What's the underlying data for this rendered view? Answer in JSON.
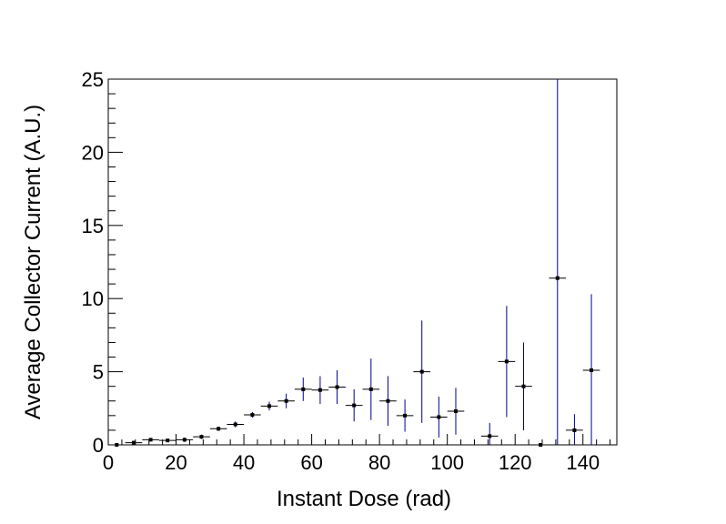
{
  "chart_data": {
    "type": "scatter",
    "title": "",
    "xlabel": "Instant Dose (rad)",
    "ylabel": "Average Collector Current (A.U.)",
    "xlim": [
      0,
      150
    ],
    "ylim": [
      0,
      25
    ],
    "x_ticks": [
      0,
      20,
      40,
      60,
      80,
      100,
      120,
      140
    ],
    "y_ticks": [
      0,
      5,
      10,
      15,
      20,
      25
    ],
    "x_tick_labels": [
      "0",
      "20",
      "40",
      "60",
      "80",
      "100",
      "120",
      "140"
    ],
    "y_tick_labels": [
      "0",
      "5",
      "10",
      "15",
      "20",
      "25"
    ],
    "grid": false,
    "bin_half_width": 2.5,
    "marker_color": "#000000",
    "errorbar_color": "#00008b",
    "points": [
      {
        "x": 2.5,
        "y": 0.0,
        "err": 0.05
      },
      {
        "x": 7.5,
        "y": 0.15,
        "err": 0.1
      },
      {
        "x": 12.5,
        "y": 0.35,
        "err": 0.1
      },
      {
        "x": 17.5,
        "y": 0.3,
        "err": 0.1
      },
      {
        "x": 22.5,
        "y": 0.35,
        "err": 0.15
      },
      {
        "x": 27.5,
        "y": 0.55,
        "err": 0.15
      },
      {
        "x": 32.5,
        "y": 1.1,
        "err": 0.15
      },
      {
        "x": 37.5,
        "y": 1.4,
        "err": 0.2
      },
      {
        "x": 42.5,
        "y": 2.05,
        "err": 0.2
      },
      {
        "x": 47.5,
        "y": 2.65,
        "err": 0.3
      },
      {
        "x": 52.5,
        "y": 3.0,
        "err": 0.5
      },
      {
        "x": 57.5,
        "y": 3.8,
        "err": 0.8
      },
      {
        "x": 62.5,
        "y": 3.75,
        "err": 0.95
      },
      {
        "x": 67.5,
        "y": 3.95,
        "err": 1.15
      },
      {
        "x": 72.5,
        "y": 2.7,
        "err": 1.1
      },
      {
        "x": 77.5,
        "y": 3.8,
        "err": 2.1
      },
      {
        "x": 82.5,
        "y": 3.0,
        "err": 1.7
      },
      {
        "x": 87.5,
        "y": 2.0,
        "err": 1.1
      },
      {
        "x": 92.5,
        "y": 5.0,
        "err": 3.5
      },
      {
        "x": 97.5,
        "y": 1.9,
        "err": 1.4
      },
      {
        "x": 102.5,
        "y": 2.3,
        "err": 1.6
      },
      {
        "x": 112.5,
        "y": 0.6,
        "err": 0.9
      },
      {
        "x": 117.5,
        "y": 5.7,
        "err": 3.8
      },
      {
        "x": 122.5,
        "y": 4.0,
        "err": 3.0
      },
      {
        "x": 127.5,
        "y": 0.0,
        "err": 0.05
      },
      {
        "x": 132.5,
        "y": 11.4,
        "err": 14.0
      },
      {
        "x": 137.5,
        "y": 1.0,
        "err": 1.1
      },
      {
        "x": 142.5,
        "y": 5.1,
        "err": 5.2
      }
    ]
  }
}
